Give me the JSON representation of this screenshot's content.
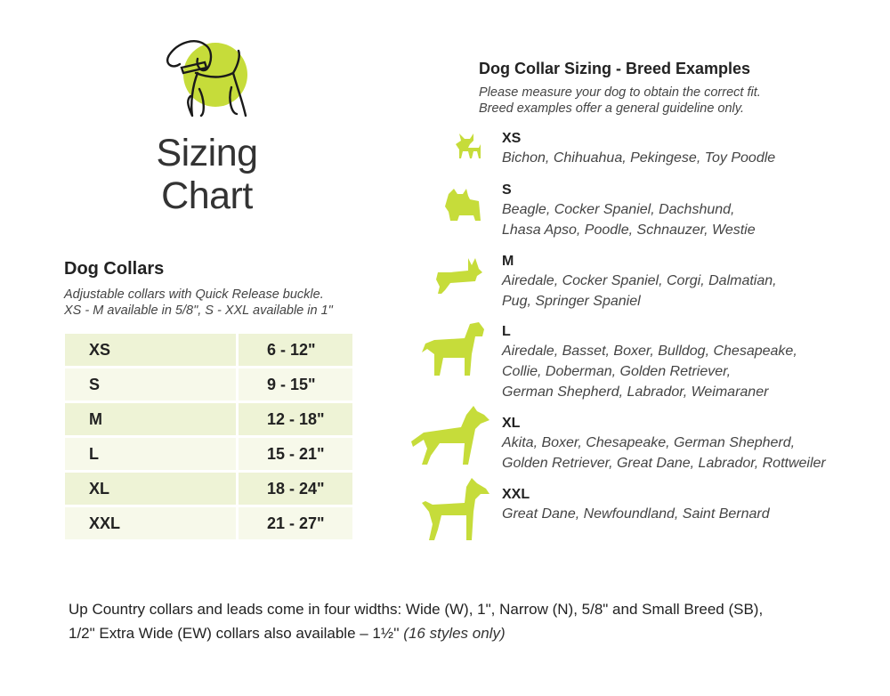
{
  "header": {
    "title_line1": "Sizing",
    "title_line2": "Chart"
  },
  "colors": {
    "accent": "#c6dc3a",
    "row_dark": "#eef3d6",
    "row_light": "#f7f9ea"
  },
  "collars": {
    "title": "Dog Collars",
    "subtitle_line1": "Adjustable collars with Quick Release buckle.",
    "subtitle_line2": "XS - M available in 5/8\", S - XXL available in 1\"",
    "rows": [
      {
        "size": "XS",
        "range": "6 - 12\""
      },
      {
        "size": "S",
        "range": "9 - 15\""
      },
      {
        "size": "M",
        "range": "12 - 18\""
      },
      {
        "size": "L",
        "range": "15 - 21\""
      },
      {
        "size": "XL",
        "range": "18 - 24\""
      },
      {
        "size": "XXL",
        "range": "21 - 27\""
      }
    ]
  },
  "breeds": {
    "title": "Dog Collar Sizing - Breed Examples",
    "subtitle_line1": "Please measure your dog to obtain the correct fit.",
    "subtitle_line2": "Breed examples offer a general guideline only.",
    "items": [
      {
        "size": "XS",
        "lines": [
          "Bichon, Chihuahua, Pekingese, Toy Poodle"
        ],
        "icon": "chihuahua-silhouette-icon"
      },
      {
        "size": "S",
        "lines": [
          "Beagle, Cocker Spaniel, Dachshund,",
          "Lhasa Apso, Poodle, Schnauzer, Westie"
        ],
        "icon": "terrier-silhouette-icon"
      },
      {
        "size": "M",
        "lines": [
          "Airedale, Cocker Spaniel, Corgi, Dalmatian,",
          "Pug, Springer Spaniel"
        ],
        "icon": "corgi-silhouette-icon"
      },
      {
        "size": "L",
        "lines": [
          "Airedale, Basset, Boxer, Bulldog, Chesapeake,",
          "Collie, Doberman, Golden Retriever,",
          "German Shepherd, Labrador, Weimaraner"
        ],
        "icon": "retriever-silhouette-icon"
      },
      {
        "size": "XL",
        "lines": [
          "Akita, Boxer, Chesapeake, German Shepherd,",
          "Golden Retriever, Great Dane, Labrador, Rottweiler"
        ],
        "icon": "shepherd-silhouette-icon"
      },
      {
        "size": "XXL",
        "lines": [
          "Great Dane, Newfoundland, Saint Bernard"
        ],
        "icon": "great-dane-silhouette-icon"
      }
    ]
  },
  "footer": {
    "line1": "Up Country collars and leads come in four widths: Wide (W), 1\", Narrow (N), 5/8\" and  Small Breed (SB),",
    "line2": "1/2\" Extra Wide (EW) collars also available – 1½''",
    "line2_italic": "(16 styles only)"
  }
}
